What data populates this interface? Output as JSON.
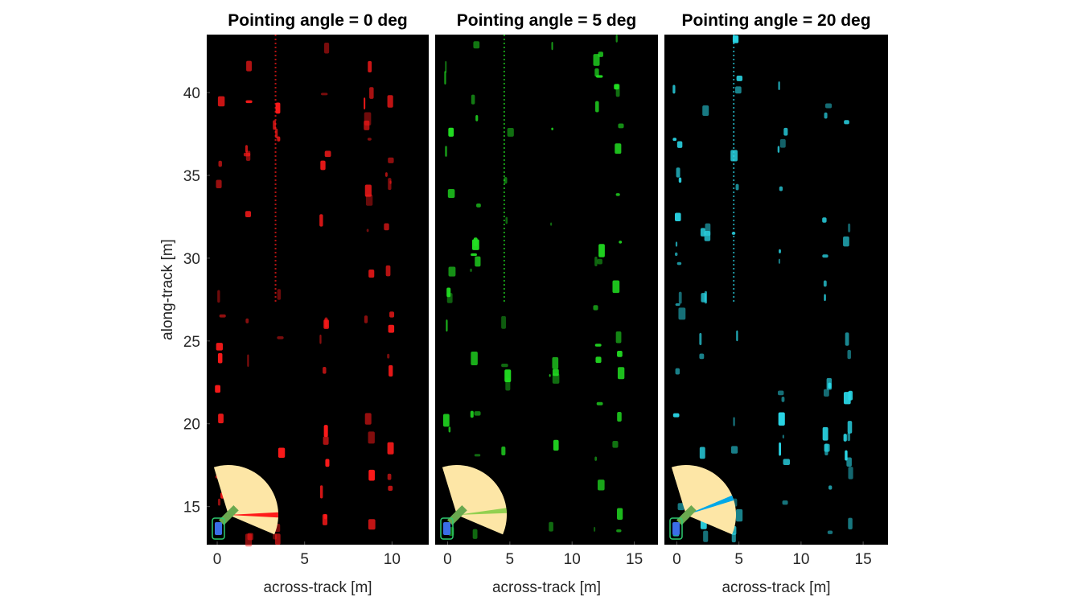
{
  "chart_data": [
    {
      "type": "image",
      "title": "Pointing angle = 0 deg",
      "xlabel": "across-track [m]",
      "ylabel": "along-track [m]",
      "color": "#ff1a1a",
      "xlim": [
        -0.6,
        12.1
      ],
      "xticks": [
        0,
        5,
        10
      ],
      "ylim": [
        12.7,
        43.5
      ],
      "yticks": [
        15,
        20,
        25,
        30,
        35,
        40
      ]
    },
    {
      "type": "image",
      "title": "Pointing angle = 5 deg",
      "xlabel": "across-track [m]",
      "color": "#22e022",
      "xlim": [
        -1,
        16.9
      ],
      "xticks": [
        0,
        5,
        10,
        15
      ],
      "ylim": [
        12.7,
        43.5
      ]
    },
    {
      "type": "image",
      "title": "Pointing angle = 20 deg",
      "xlabel": "across-track [m]",
      "color": "#2ad8e8",
      "xlim": [
        -1,
        17
      ],
      "xticks": [
        0,
        5,
        10,
        15
      ],
      "ylim": [
        12.7,
        43.5
      ]
    }
  ]
}
